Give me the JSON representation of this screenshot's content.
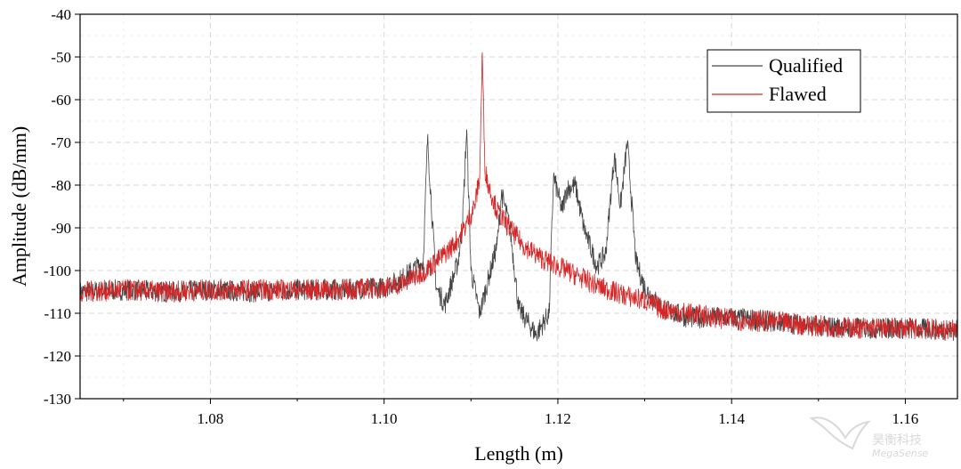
{
  "chart_data": {
    "type": "line",
    "xlabel": "Length (m)",
    "ylabel": "Amplitude (dB/mm)",
    "xlim": [
      1.065,
      1.166
    ],
    "ylim": [
      -130,
      -40
    ],
    "xticks": [
      1.08,
      1.1,
      1.12,
      1.14,
      1.16
    ],
    "xtick_labels": [
      "1.08",
      "1.10",
      "1.12",
      "1.14",
      "1.16"
    ],
    "yticks": [
      -40,
      -50,
      -60,
      -70,
      -80,
      -90,
      -100,
      -110,
      -120,
      -130
    ],
    "ytick_labels": [
      "-40",
      "-50",
      "-60",
      "-70",
      "-80",
      "-90",
      "-100",
      "-110",
      "-120",
      "-130"
    ],
    "grid": true,
    "legend_position": "top-right",
    "series": [
      {
        "name": "Qualified",
        "color": "#444444",
        "x": [
          1.065,
          1.07,
          1.075,
          1.08,
          1.085,
          1.09,
          1.095,
          1.1,
          1.102,
          1.1045,
          1.105,
          1.106,
          1.107,
          1.1085,
          1.109,
          1.1095,
          1.11,
          1.111,
          1.112,
          1.113,
          1.1135,
          1.1145,
          1.1155,
          1.1165,
          1.1175,
          1.119,
          1.1195,
          1.1205,
          1.121,
          1.122,
          1.123,
          1.1245,
          1.1255,
          1.1265,
          1.1272,
          1.128,
          1.129,
          1.13,
          1.132,
          1.135,
          1.14,
          1.145,
          1.15,
          1.155,
          1.16,
          1.166
        ],
        "y": [
          -105,
          -104.5,
          -105,
          -104.5,
          -105,
          -104.5,
          -104.5,
          -104,
          -102,
          -98,
          -69,
          -104,
          -108,
          -98,
          -90,
          -67,
          -100,
          -110,
          -102,
          -94,
          -82,
          -90,
          -109,
          -112,
          -115,
          -110,
          -78,
          -86,
          -81,
          -80,
          -90,
          -99,
          -96,
          -73,
          -85,
          -70,
          -98,
          -104,
          -109,
          -111,
          -111,
          -112,
          -113,
          -113.5,
          -113.5,
          -114
        ]
      },
      {
        "name": "Flawed",
        "color": "#d62728",
        "x": [
          1.065,
          1.07,
          1.075,
          1.08,
          1.085,
          1.09,
          1.095,
          1.1,
          1.102,
          1.104,
          1.106,
          1.108,
          1.109,
          1.11,
          1.1105,
          1.111,
          1.1113,
          1.1116,
          1.112,
          1.1125,
          1.113,
          1.114,
          1.116,
          1.118,
          1.12,
          1.122,
          1.125,
          1.128,
          1.13,
          1.132,
          1.135,
          1.14,
          1.145,
          1.15,
          1.155,
          1.16,
          1.166
        ],
        "y": [
          -105,
          -104.5,
          -105,
          -104.5,
          -104.5,
          -104.5,
          -104.5,
          -104,
          -103,
          -101,
          -98,
          -94,
          -91,
          -87,
          -84,
          -78,
          -49,
          -76,
          -80,
          -83,
          -86,
          -89,
          -94,
          -97,
          -99,
          -101,
          -104,
          -106,
          -107,
          -109,
          -110,
          -111.5,
          -112,
          -113,
          -113.5,
          -113.5,
          -114
        ]
      }
    ]
  },
  "watermark": {
    "line1": "昊衡科技",
    "line2": "MegaSense"
  }
}
